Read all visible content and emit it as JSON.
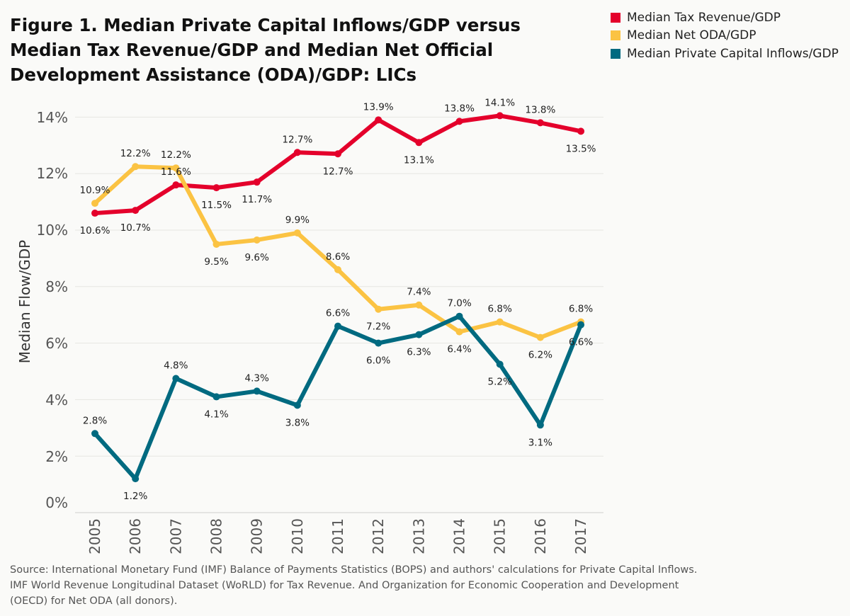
{
  "title": "Figure 1. Median Private Capital Inflows/GDP versus Median Tax Revenue/GDP and Median Net Official Development Assistance (ODA)/GDP: LICs",
  "source": "Source: International Monetary Fund (IMF) Balance of Payments Statistics (BOPS) and authors' calculations for Private Capital Inflows. IMF World Revenue Longitudinal Dataset (WoRLD) for Tax Revenue. And Organization for Economic Cooperation and Development (OECD) for Net ODA (all donors).",
  "chart_data": {
    "type": "line",
    "title": "Figure 1. Median Private Capital Inflows/GDP versus Median Tax Revenue/GDP and Median Net Official Development Assistance (ODA)/GDP: LICs",
    "xlabel": "",
    "ylabel": "Median Flow/GDP",
    "x": [
      "2005",
      "2006",
      "2007",
      "2008",
      "2009",
      "2010",
      "2011",
      "2012",
      "2013",
      "2014",
      "2015",
      "2016",
      "2017"
    ],
    "ylim": [
      0,
      14
    ],
    "yticks": [
      "0%",
      "2%",
      "4%",
      "6%",
      "8%",
      "10%",
      "12%",
      "14%"
    ],
    "ytick_values": [
      0,
      2,
      4,
      6,
      8,
      10,
      12,
      14
    ],
    "grid": true,
    "legend_position": "top-right",
    "series": [
      {
        "name": "Median Tax Revenue/GDP",
        "color": "#e4002b",
        "values": [
          10.6,
          10.7,
          11.6,
          11.5,
          11.7,
          12.75,
          12.7,
          13.9,
          13.1,
          13.85,
          14.05,
          13.8,
          13.5
        ],
        "labels": [
          "10.6%",
          "10.7%",
          "11.6%",
          "11.5%",
          "11.7%",
          "12.7%",
          "12.7%",
          "13.9%",
          "13.1%",
          "13.8%",
          "14.1%",
          "13.8%",
          "13.5%"
        ],
        "label_pos": [
          "below",
          "below",
          "above",
          "below",
          "below",
          "above",
          "below",
          "above",
          "below",
          "above",
          "above",
          "above",
          "below"
        ]
      },
      {
        "name": "Median Net ODA/GDP",
        "color": "#fbc343",
        "values": [
          10.95,
          12.25,
          12.2,
          9.5,
          9.65,
          9.9,
          8.6,
          7.2,
          7.35,
          6.4,
          6.75,
          6.2,
          6.75
        ],
        "labels": [
          "10.9%",
          "12.2%",
          "12.2%",
          "9.5%",
          "9.6%",
          "9.9%",
          "8.6%",
          "7.2%",
          "7.4%",
          "6.4%",
          "6.8%",
          "6.2%",
          "6.8%"
        ],
        "label_pos": [
          "above",
          "above",
          "above",
          "below",
          "below",
          "above",
          "above",
          "below",
          "above",
          "below",
          "above",
          "below",
          "above"
        ]
      },
      {
        "name": "Median Private Capital Inflows/GDP",
        "color": "#006a80",
        "values": [
          2.8,
          1.2,
          4.75,
          4.1,
          4.3,
          3.8,
          6.6,
          6.0,
          6.3,
          6.95,
          5.25,
          3.1,
          6.65
        ],
        "labels": [
          "2.8%",
          "1.2%",
          "4.8%",
          "4.1%",
          "4.3%",
          "3.8%",
          "6.6%",
          "6.0%",
          "6.3%",
          "7.0%",
          "5.2%",
          "3.1%",
          "6.6%"
        ],
        "label_pos": [
          "above",
          "below",
          "above",
          "below",
          "above",
          "below",
          "above",
          "below",
          "below",
          "above",
          "below",
          "below",
          "below"
        ]
      }
    ]
  }
}
